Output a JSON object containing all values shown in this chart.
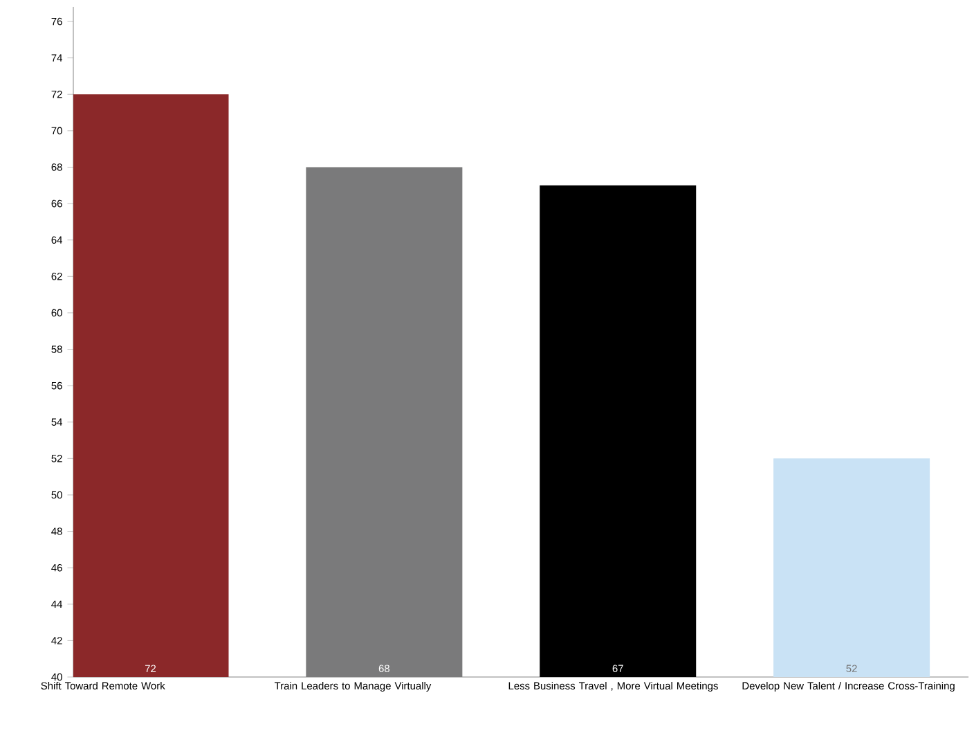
{
  "chart_data": {
    "type": "bar",
    "categories": [
      "Shift Toward Remote Work",
      "Train Leaders to Manage Virtually",
      "Less Business Travel , More Virtual Meetings",
      "Develop New Talent / Increase Cross-Training"
    ],
    "values": [
      72,
      68,
      67,
      52
    ],
    "colors": [
      "#8b2829",
      "#7a7a7b",
      "#000000",
      "#c9e2f5"
    ],
    "ylim": [
      40,
      76.8
    ],
    "yticks": [
      40,
      42,
      44,
      46,
      48,
      50,
      52,
      54,
      56,
      58,
      60,
      62,
      64,
      66,
      68,
      70,
      72,
      74,
      76
    ],
    "data_labels": true,
    "grid": false
  }
}
